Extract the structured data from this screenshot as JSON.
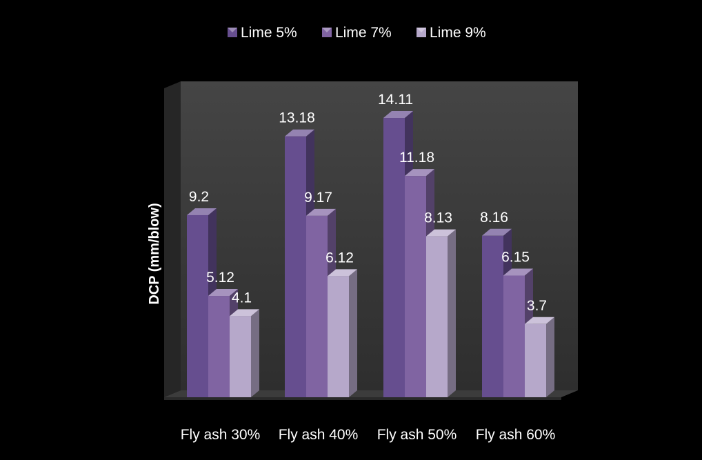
{
  "chart_data": {
    "type": "bar",
    "style": "3d-clustered-column",
    "categories": [
      "Fly ash 30%",
      "Fly ash 40%",
      "Fly ash 50%",
      "Fly ash 60%"
    ],
    "series": [
      {
        "name": "Lime 5%",
        "values": [
          9.2,
          13.18,
          14.11,
          8.16
        ],
        "labels": [
          "9.2",
          "13.18",
          "14.11",
          "8.16"
        ],
        "color": "#664e8f"
      },
      {
        "name": "Lime 7%",
        "values": [
          5.12,
          9.17,
          11.18,
          6.15
        ],
        "labels": [
          "5.12",
          "9.17",
          "11.18",
          "6.15"
        ],
        "color": "#8064a2"
      },
      {
        "name": "Lime 9%",
        "values": [
          4.1,
          6.12,
          8.13,
          3.7
        ],
        "labels": [
          "4.1",
          "6.12",
          "8.13",
          "3.7"
        ],
        "color": "#b6a8ca"
      }
    ],
    "title": "",
    "xlabel": "",
    "ylabel": "DCP (mm/blow)",
    "ylim": [
      0,
      16
    ],
    "grid": false,
    "legend_position": "top",
    "background_color": "#000000",
    "back_wall_color": "#3a3a3a",
    "text_color": "#ffffff"
  }
}
